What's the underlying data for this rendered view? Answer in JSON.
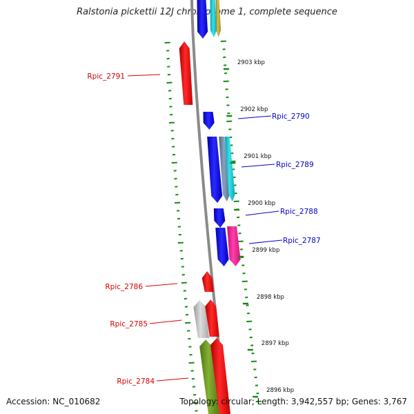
{
  "title": "Ralstonia pickettii 12J chromosome 1, complete sequence",
  "footer": {
    "accession": "Accession: NC_010682",
    "summary": "Topology: circular; Length: 3,942,557 bp; Genes: 3,767"
  },
  "colors": {
    "backbone": "#8a8a8a",
    "ticks": "#138a13",
    "reverse_label": "#d40000",
    "forward_label": "#0000cc",
    "red": "#ff0000",
    "blue": "#0a0aff",
    "cyan": "#17d0dd",
    "slate": "#6f88a8",
    "magenta": "#ff1a9c",
    "grey": "#c4c4c4",
    "olive": "#6b961f",
    "gold": "#b9a53a"
  },
  "scale_labels": [
    "2903 kbp",
    "2902 kbp",
    "2901 kbp",
    "2900 kbp",
    "2899 kbp",
    "2898 kbp",
    "2897 kbp",
    "2896 kbp"
  ],
  "gene_labels": {
    "reverse": [
      "Rpic_2791",
      "Rpic_2786",
      "Rpic_2785",
      "Rpic_2784"
    ],
    "forward": [
      "Rpic_2790",
      "Rpic_2789",
      "Rpic_2788",
      "Rpic_2787"
    ]
  },
  "genes": [
    {
      "id": "top-blue",
      "strand": "+",
      "color": "blue"
    },
    {
      "id": "top-cyan",
      "strand": "+",
      "color": "cyan"
    },
    {
      "id": "top-gold",
      "strand": "+",
      "color": "gold"
    },
    {
      "id": "Rpic_2791",
      "strand": "-",
      "color": "red"
    },
    {
      "id": "Rpic_2790",
      "strand": "+",
      "color": "blue"
    },
    {
      "id": "Rpic_2789",
      "strand": "+",
      "color": "blue"
    },
    {
      "id": "Rpic_2789-slate",
      "strand": "+",
      "color": "slate"
    },
    {
      "id": "Rpic_2789-cyan",
      "strand": "+",
      "color": "cyan"
    },
    {
      "id": "Rpic_2788",
      "strand": "+",
      "color": "blue"
    },
    {
      "id": "Rpic_2787-blue",
      "strand": "+",
      "color": "blue"
    },
    {
      "id": "Rpic_2787",
      "strand": "+",
      "color": "magenta"
    },
    {
      "id": "Rpic_2786",
      "strand": "-",
      "color": "red"
    },
    {
      "id": "Rpic_2785-grey",
      "strand": "-",
      "color": "grey"
    },
    {
      "id": "Rpic_2785",
      "strand": "-",
      "color": "red"
    },
    {
      "id": "Rpic_2784",
      "strand": "-",
      "color": "olive"
    },
    {
      "id": "Rpic_2784-red",
      "strand": "-",
      "color": "red"
    }
  ]
}
